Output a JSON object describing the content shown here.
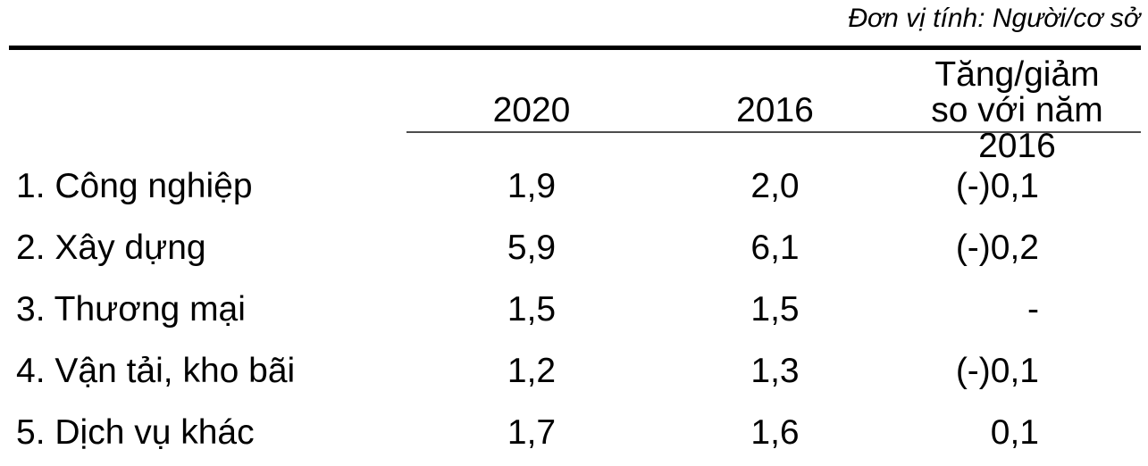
{
  "unit_note": "Đơn vị tính: Người/cơ sở",
  "table": {
    "header": {
      "col_label": "",
      "col_2020": "2020",
      "col_2016": "2016",
      "col_change_line1": "Tăng/giảm",
      "col_change_line2": "so với năm 2016"
    },
    "rows": [
      {
        "label": "1. Công nghiệp",
        "v2020": "1,9",
        "v2016": "2,0",
        "change": "(-)0,1"
      },
      {
        "label": "2. Xây dựng",
        "v2020": "5,9",
        "v2016": "6,1",
        "change": "(-)0,2"
      },
      {
        "label": "3. Thương mại",
        "v2020": "1,5",
        "v2016": "1,5",
        "change": "-"
      },
      {
        "label": "4. Vận tải, kho bãi",
        "v2020": "1,2",
        "v2016": "1,3",
        "change": "(-)0,1"
      },
      {
        "label": "5. Dịch vụ khác",
        "v2020": "1,7",
        "v2016": "1,6",
        "change": "0,1"
      }
    ]
  },
  "colors": {
    "text": "#000000",
    "rule_heavy": "#000000",
    "rule_light": "#4d4d4d",
    "background": "#ffffff"
  },
  "chart_data": {
    "type": "table",
    "unit": "Người/cơ sở",
    "columns": [
      "",
      "2020",
      "2016",
      "Tăng/giảm so với năm 2016"
    ],
    "rows": [
      [
        "1. Công nghiệp",
        "1,9",
        "2,0",
        "(-)0,1"
      ],
      [
        "2. Xây dựng",
        "5,9",
        "6,1",
        "(-)0,2"
      ],
      [
        "3. Thương mại",
        "1,5",
        "1,5",
        "-"
      ],
      [
        "4. Vận tải, kho bãi",
        "1,2",
        "1,3",
        "(-)0,1"
      ],
      [
        "5. Dịch vụ khác",
        "1,7",
        "1,6",
        "0,1"
      ]
    ]
  }
}
